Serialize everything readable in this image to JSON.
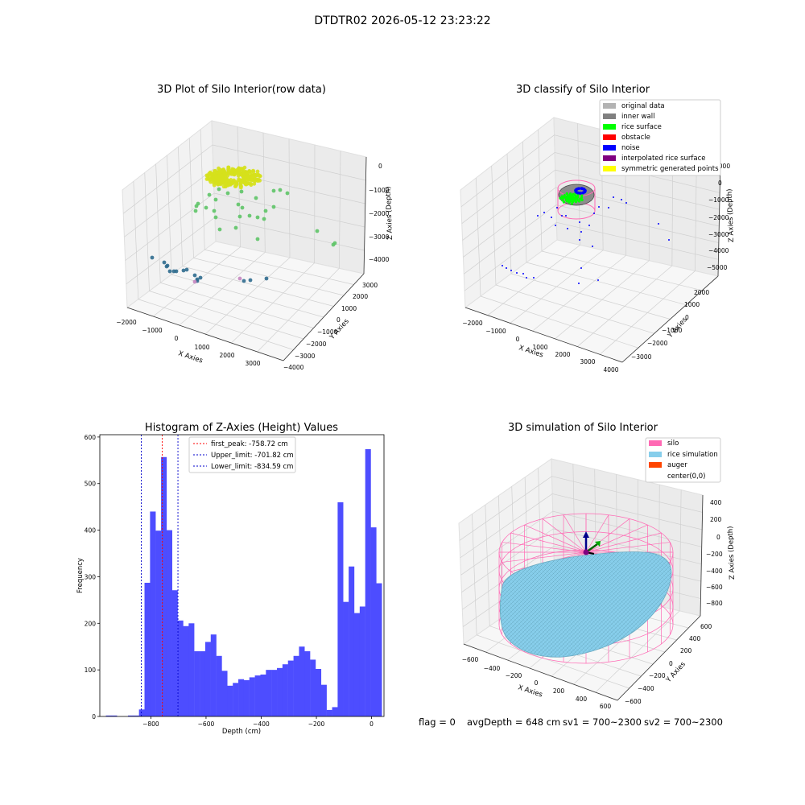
{
  "figure": {
    "suptitle": "DTDTR02 2026-05-12 23:23:22",
    "footer": {
      "flag": "flag = 0",
      "avg_depth": "avgDepth = 648 cm",
      "sv1": "sv1 = 700~2300",
      "sv2": "sv2 = 700~2300"
    }
  },
  "colors": {
    "hist_bar": "#4d4dff",
    "first_peak_line": "#ff0000",
    "limit_line": "#0000cc",
    "original_data": "#b3b3b3",
    "inner_wall": "#808080",
    "rice_surface": "#00ff00",
    "obstacle": "#ff0000",
    "noise": "#0000ff",
    "interpolated_rice_surface": "#800080",
    "symmetric_generated_points": "#ffff00",
    "silo": "#ff69b4",
    "rice_simulation": "#87ceeb",
    "auger": "#ff4500"
  },
  "chart_data": [
    {
      "type": "scatter",
      "projection": "3d",
      "title": "3D Plot of Silo Interior(row data)",
      "xlabel": "X Axies",
      "ylabel": "Y Axies",
      "zlabel": "Z Axies (Depth)",
      "x_ticks": [
        "−2000",
        "−1000",
        "0",
        "1000",
        "2000",
        "3000"
      ],
      "y_ticks": [
        "−4000",
        "−3000",
        "−2000",
        "−1000",
        "0",
        "1000",
        "2000",
        "3000"
      ],
      "z_ticks": [
        "−4000",
        "−3000",
        "−2000",
        "−1000",
        "0"
      ],
      "colormap": "viridis",
      "grid": true
    },
    {
      "type": "scatter",
      "projection": "3d",
      "title": "3D classify of Silo Interior",
      "xlabel": "X Axies",
      "ylabel": "Y Axies",
      "zlabel": "Z Axies (Depth)",
      "x_ticks": [
        "−2000",
        "−1000",
        "0",
        "1000",
        "2000",
        "3000",
        "4000"
      ],
      "y_ticks": [
        "−3000",
        "−2000",
        "−1000",
        "0",
        "1000",
        "2000"
      ],
      "z_ticks": [
        "−5000",
        "−4000",
        "−3000",
        "−2000",
        "−1000",
        "0",
        "1000"
      ],
      "legend": [
        "original data",
        "inner wall",
        "rice surface",
        "obstacle",
        "noise",
        "interpolated rice surface",
        "symmetric generated points"
      ],
      "legend_loc": "upper right",
      "grid": true
    },
    {
      "type": "bar",
      "title": "Histogram of Z-Axies (Height) Values",
      "xlabel": "Depth (cm)",
      "ylabel": "Frequency",
      "xlim": [
        -985,
        45
      ],
      "ylim": [
        0,
        605
      ],
      "x_ticks": [
        -800,
        -600,
        -400,
        -200,
        0
      ],
      "y_ticks": [
        0,
        100,
        200,
        300,
        400,
        500,
        600
      ],
      "bin_start": -963,
      "bin_width": 20,
      "values": [
        2,
        2,
        0,
        0,
        2,
        2,
        15,
        287,
        440,
        399,
        557,
        400,
        271,
        206,
        194,
        200,
        140,
        140,
        160,
        176,
        130,
        98,
        66,
        72,
        80,
        78,
        84,
        88,
        90,
        100,
        100,
        104,
        112,
        120,
        130,
        150,
        140,
        122,
        102,
        68,
        14,
        20,
        460,
        246,
        322,
        222,
        236,
        574,
        406,
        286
      ],
      "vlines": [
        {
          "label": "first_peak: -758.72 cm",
          "x": -758.72,
          "color": "#ff0000"
        },
        {
          "label": "Upper_limit: -701.82 cm",
          "x": -701.82,
          "color": "#0000cc"
        },
        {
          "label": "Lower_limit: -834.59 cm",
          "x": -834.59,
          "color": "#0000cc"
        }
      ],
      "legend_loc": "upper center",
      "grid": false
    },
    {
      "type": "surface",
      "projection": "3d",
      "title": "3D simulation of Silo Interior",
      "xlabel": "X Axies",
      "ylabel": "Y Axies",
      "zlabel": "Z Axies (Depth)",
      "x_ticks": [
        "−600",
        "−400",
        "−200",
        "0",
        "200",
        "400",
        "600"
      ],
      "y_ticks": [
        "−600",
        "−400",
        "−200",
        "0",
        "200",
        "400",
        "600"
      ],
      "z_ticks": [
        "−800",
        "−600",
        "−400",
        "−200",
        "0",
        "200",
        "400"
      ],
      "legend": [
        "silo",
        "rice simulation",
        "auger",
        "center(0,0)"
      ],
      "legend_loc": "upper right",
      "grid": true
    }
  ]
}
